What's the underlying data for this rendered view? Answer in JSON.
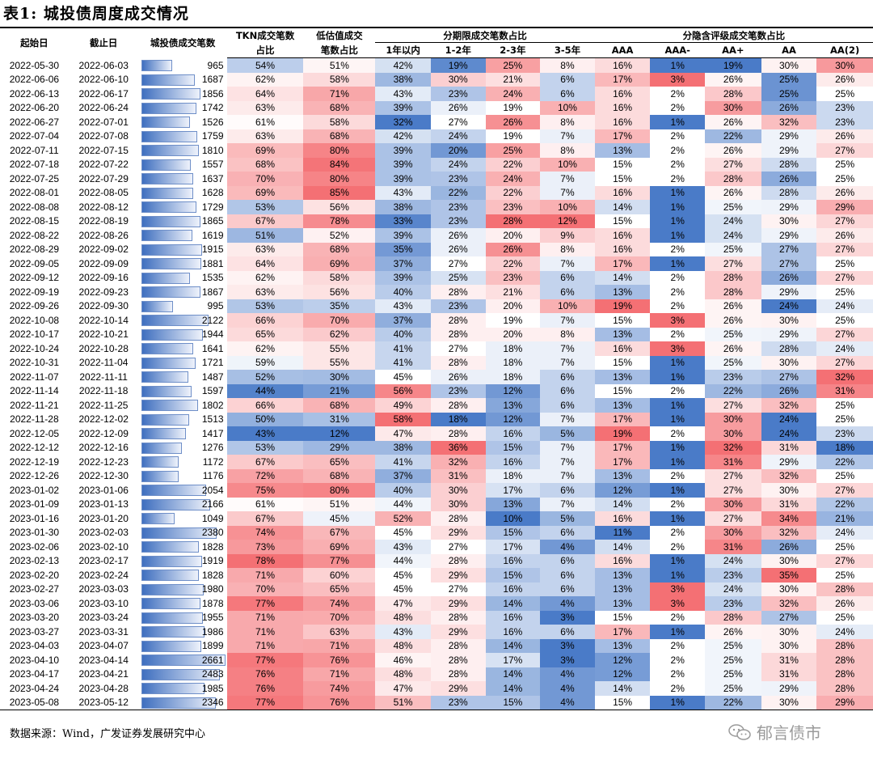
{
  "title": "表1:  城投债周度成交情况",
  "source": "数据来源：Wind，广发证券发展研究中心",
  "watermark": "郁言债市",
  "colors": {
    "bar_dark": "#3f6fbf",
    "bar_light": "#eef2fb",
    "high": "#f4777a",
    "low": "#4a7bc8"
  },
  "headers": {
    "start": "起始日",
    "end": "截止日",
    "count": "城投债成交笔数",
    "tkn": [
      "TKN成交笔数",
      "占比"
    ],
    "under": [
      "低估值成交",
      "笔数占比"
    ],
    "term_group": "分期限成交笔数占比",
    "rating_group": "分隐含评级成交笔数占比",
    "term": [
      "1年以内",
      "1-2年",
      "2-3年",
      "3-5年"
    ],
    "rating": [
      "AAA",
      "AAA-",
      "AA+",
      "AA",
      "AA(2)"
    ]
  },
  "rows": [
    [
      "2022-05-30",
      "2022-06-03",
      "965",
      "54%",
      "51%",
      "42%",
      "19%",
      "25%",
      "8%",
      "16%",
      "1%",
      "19%",
      "30%",
      "30%"
    ],
    [
      "2022-06-06",
      "2022-06-10",
      "1687",
      "62%",
      "58%",
      "38%",
      "30%",
      "21%",
      "6%",
      "17%",
      "3%",
      "26%",
      "25%",
      "26%"
    ],
    [
      "2022-06-13",
      "2022-06-17",
      "1856",
      "64%",
      "71%",
      "43%",
      "23%",
      "24%",
      "6%",
      "16%",
      "2%",
      "28%",
      "25%",
      "25%"
    ],
    [
      "2022-06-20",
      "2022-06-24",
      "1742",
      "63%",
      "68%",
      "39%",
      "26%",
      "19%",
      "10%",
      "16%",
      "2%",
      "30%",
      "26%",
      "23%"
    ],
    [
      "2022-06-27",
      "2022-07-01",
      "1526",
      "61%",
      "58%",
      "32%",
      "27%",
      "26%",
      "8%",
      "16%",
      "1%",
      "26%",
      "32%",
      "23%"
    ],
    [
      "2022-07-04",
      "2022-07-08",
      "1759",
      "63%",
      "68%",
      "42%",
      "24%",
      "19%",
      "7%",
      "17%",
      "2%",
      "22%",
      "29%",
      "26%"
    ],
    [
      "2022-07-11",
      "2022-07-15",
      "1810",
      "69%",
      "80%",
      "39%",
      "20%",
      "25%",
      "8%",
      "13%",
      "2%",
      "26%",
      "29%",
      "27%"
    ],
    [
      "2022-07-18",
      "2022-07-22",
      "1557",
      "68%",
      "84%",
      "39%",
      "24%",
      "22%",
      "10%",
      "15%",
      "2%",
      "27%",
      "28%",
      "25%"
    ],
    [
      "2022-07-25",
      "2022-07-29",
      "1637",
      "70%",
      "80%",
      "39%",
      "23%",
      "24%",
      "7%",
      "15%",
      "2%",
      "28%",
      "26%",
      "25%"
    ],
    [
      "2022-08-01",
      "2022-08-05",
      "1628",
      "69%",
      "85%",
      "43%",
      "22%",
      "22%",
      "7%",
      "16%",
      "1%",
      "26%",
      "28%",
      "26%"
    ],
    [
      "2022-08-08",
      "2022-08-12",
      "1729",
      "53%",
      "56%",
      "38%",
      "23%",
      "23%",
      "10%",
      "14%",
      "1%",
      "25%",
      "29%",
      "29%"
    ],
    [
      "2022-08-15",
      "2022-08-19",
      "1865",
      "67%",
      "78%",
      "33%",
      "23%",
      "28%",
      "12%",
      "15%",
      "1%",
      "24%",
      "30%",
      "27%"
    ],
    [
      "2022-08-22",
      "2022-08-26",
      "1619",
      "51%",
      "52%",
      "39%",
      "26%",
      "20%",
      "9%",
      "16%",
      "1%",
      "24%",
      "29%",
      "26%"
    ],
    [
      "2022-08-29",
      "2022-09-02",
      "1915",
      "63%",
      "68%",
      "35%",
      "26%",
      "26%",
      "8%",
      "16%",
      "2%",
      "25%",
      "27%",
      "27%"
    ],
    [
      "2022-09-05",
      "2022-09-09",
      "1881",
      "64%",
      "69%",
      "37%",
      "27%",
      "22%",
      "7%",
      "17%",
      "1%",
      "27%",
      "27%",
      "25%"
    ],
    [
      "2022-09-12",
      "2022-09-16",
      "1535",
      "62%",
      "58%",
      "39%",
      "25%",
      "23%",
      "6%",
      "14%",
      "2%",
      "28%",
      "26%",
      "27%"
    ],
    [
      "2022-09-19",
      "2022-09-23",
      "1867",
      "63%",
      "56%",
      "40%",
      "28%",
      "21%",
      "6%",
      "13%",
      "2%",
      "28%",
      "29%",
      "25%"
    ],
    [
      "2022-09-26",
      "2022-09-30",
      "995",
      "53%",
      "35%",
      "43%",
      "23%",
      "20%",
      "10%",
      "19%",
      "2%",
      "26%",
      "24%",
      "24%"
    ],
    [
      "2022-10-08",
      "2022-10-14",
      "2122",
      "66%",
      "70%",
      "37%",
      "28%",
      "19%",
      "7%",
      "15%",
      "3%",
      "26%",
      "30%",
      "25%"
    ],
    [
      "2022-10-17",
      "2022-10-21",
      "1944",
      "65%",
      "62%",
      "40%",
      "28%",
      "20%",
      "8%",
      "13%",
      "2%",
      "25%",
      "29%",
      "27%"
    ],
    [
      "2022-10-24",
      "2022-10-28",
      "1641",
      "62%",
      "55%",
      "41%",
      "27%",
      "18%",
      "7%",
      "16%",
      "3%",
      "26%",
      "28%",
      "24%"
    ],
    [
      "2022-10-31",
      "2022-11-04",
      "1721",
      "59%",
      "55%",
      "41%",
      "28%",
      "18%",
      "7%",
      "15%",
      "1%",
      "25%",
      "30%",
      "27%"
    ],
    [
      "2022-11-07",
      "2022-11-11",
      "1487",
      "52%",
      "30%",
      "45%",
      "26%",
      "18%",
      "6%",
      "13%",
      "1%",
      "23%",
      "27%",
      "32%"
    ],
    [
      "2022-11-14",
      "2022-11-18",
      "1597",
      "44%",
      "21%",
      "56%",
      "23%",
      "12%",
      "6%",
      "15%",
      "2%",
      "22%",
      "26%",
      "31%"
    ],
    [
      "2022-11-21",
      "2022-11-25",
      "1802",
      "66%",
      "68%",
      "49%",
      "28%",
      "13%",
      "6%",
      "13%",
      "1%",
      "27%",
      "32%",
      "25%"
    ],
    [
      "2022-11-28",
      "2022-12-02",
      "1513",
      "50%",
      "31%",
      "58%",
      "18%",
      "12%",
      "7%",
      "17%",
      "1%",
      "30%",
      "24%",
      "25%"
    ],
    [
      "2022-12-05",
      "2022-12-09",
      "1417",
      "43%",
      "12%",
      "47%",
      "28%",
      "16%",
      "5%",
      "19%",
      "2%",
      "30%",
      "24%",
      "23%"
    ],
    [
      "2022-12-12",
      "2022-12-16",
      "1276",
      "53%",
      "29%",
      "38%",
      "36%",
      "15%",
      "7%",
      "17%",
      "1%",
      "32%",
      "31%",
      "18%"
    ],
    [
      "2022-12-19",
      "2022-12-23",
      "1172",
      "67%",
      "65%",
      "41%",
      "32%",
      "16%",
      "7%",
      "17%",
      "1%",
      "31%",
      "29%",
      "22%"
    ],
    [
      "2022-12-26",
      "2022-12-30",
      "1176",
      "72%",
      "68%",
      "37%",
      "31%",
      "18%",
      "7%",
      "13%",
      "2%",
      "27%",
      "32%",
      "25%"
    ],
    [
      "2023-01-02",
      "2023-01-06",
      "2054",
      "75%",
      "80%",
      "40%",
      "30%",
      "17%",
      "6%",
      "12%",
      "1%",
      "27%",
      "30%",
      "27%"
    ],
    [
      "2023-01-09",
      "2023-01-13",
      "2166",
      "61%",
      "51%",
      "44%",
      "30%",
      "13%",
      "7%",
      "14%",
      "2%",
      "30%",
      "31%",
      "22%"
    ],
    [
      "2023-01-16",
      "2023-01-20",
      "1049",
      "67%",
      "45%",
      "52%",
      "28%",
      "10%",
      "5%",
      "16%",
      "1%",
      "27%",
      "34%",
      "21%"
    ],
    [
      "2023-01-30",
      "2023-02-03",
      "2380",
      "74%",
      "67%",
      "45%",
      "29%",
      "15%",
      "6%",
      "11%",
      "2%",
      "30%",
      "32%",
      "24%"
    ],
    [
      "2023-02-06",
      "2023-02-10",
      "1828",
      "73%",
      "69%",
      "43%",
      "27%",
      "17%",
      "4%",
      "14%",
      "2%",
      "31%",
      "26%",
      "25%"
    ],
    [
      "2023-02-13",
      "2023-02-17",
      "1919",
      "78%",
      "77%",
      "44%",
      "28%",
      "16%",
      "6%",
      "16%",
      "1%",
      "24%",
      "30%",
      "27%"
    ],
    [
      "2023-02-20",
      "2023-02-24",
      "1828",
      "71%",
      "60%",
      "45%",
      "29%",
      "15%",
      "6%",
      "13%",
      "1%",
      "23%",
      "35%",
      "25%"
    ],
    [
      "2023-02-27",
      "2023-03-03",
      "1980",
      "70%",
      "65%",
      "45%",
      "27%",
      "16%",
      "6%",
      "13%",
      "3%",
      "24%",
      "30%",
      "28%"
    ],
    [
      "2023-03-06",
      "2023-03-10",
      "1878",
      "77%",
      "74%",
      "47%",
      "29%",
      "14%",
      "4%",
      "13%",
      "3%",
      "23%",
      "32%",
      "26%"
    ],
    [
      "2023-03-20",
      "2023-03-24",
      "1955",
      "71%",
      "70%",
      "48%",
      "28%",
      "16%",
      "3%",
      "15%",
      "2%",
      "28%",
      "27%",
      "25%"
    ],
    [
      "2023-03-27",
      "2023-03-31",
      "1986",
      "71%",
      "63%",
      "43%",
      "29%",
      "16%",
      "6%",
      "17%",
      "1%",
      "26%",
      "30%",
      "24%"
    ],
    [
      "2023-04-03",
      "2023-04-07",
      "1899",
      "71%",
      "71%",
      "48%",
      "28%",
      "14%",
      "3%",
      "13%",
      "2%",
      "25%",
      "30%",
      "28%"
    ],
    [
      "2023-04-10",
      "2023-04-14",
      "2661",
      "77%",
      "76%",
      "46%",
      "28%",
      "17%",
      "3%",
      "12%",
      "2%",
      "25%",
      "31%",
      "28%"
    ],
    [
      "2023-04-17",
      "2023-04-21",
      "2483",
      "76%",
      "71%",
      "48%",
      "28%",
      "14%",
      "4%",
      "12%",
      "2%",
      "25%",
      "31%",
      "28%"
    ],
    [
      "2023-04-24",
      "2023-04-28",
      "1985",
      "76%",
      "74%",
      "47%",
      "29%",
      "14%",
      "4%",
      "14%",
      "2%",
      "25%",
      "29%",
      "28%"
    ],
    [
      "2023-05-08",
      "2023-05-12",
      "2346",
      "77%",
      "76%",
      "51%",
      "23%",
      "15%",
      "4%",
      "15%",
      "1%",
      "22%",
      "30%",
      "29%"
    ]
  ]
}
